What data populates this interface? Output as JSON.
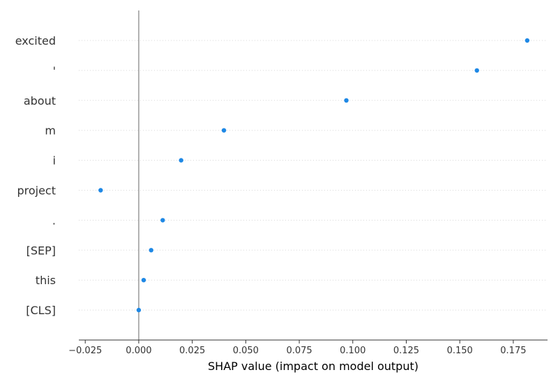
{
  "chart_data": {
    "type": "scatter",
    "title": "",
    "xlabel": "SHAP value (impact on model output)",
    "ylabel": "",
    "xlim": [
      -0.028,
      0.191
    ],
    "xticks": [
      -0.025,
      0.0,
      0.025,
      0.05,
      0.075,
      0.1,
      0.125,
      0.15,
      0.175
    ],
    "xtick_labels": [
      "−0.025",
      "0.000",
      "0.025",
      "0.050",
      "0.075",
      "0.100",
      "0.125",
      "0.150",
      "0.175"
    ],
    "categories": [
      "excited",
      "'",
      "about",
      "m",
      "i",
      "project",
      ".",
      "[SEP]",
      "this",
      "[CLS]"
    ],
    "values": [
      0.1815,
      0.158,
      0.097,
      0.0398,
      0.0198,
      -0.0178,
      0.0112,
      0.0058,
      0.0023,
      0.0
    ],
    "zero_line": 0.0,
    "grid": "horizontal dotted",
    "point_color": "#1E88E5",
    "zero_line_color": "#999999"
  }
}
